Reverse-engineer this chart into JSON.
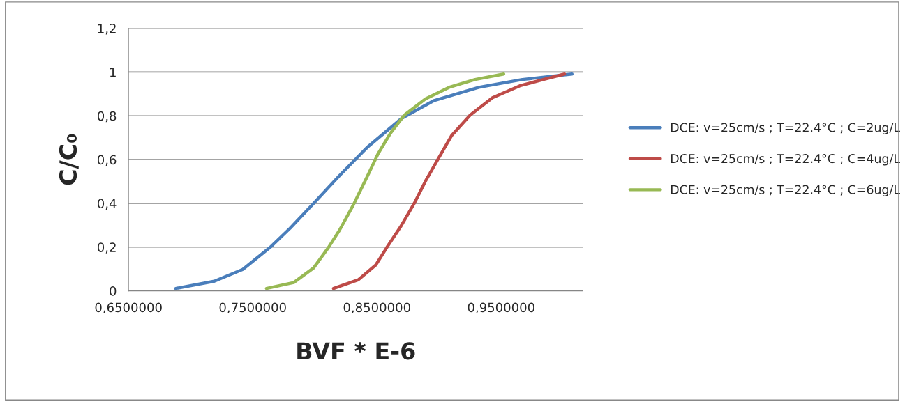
{
  "chart_data": {
    "type": "line",
    "xlabel": "BVF * E-6",
    "ylabel": "C/C₀",
    "xlim": [
      0.65,
      1.0157
    ],
    "xticks": [
      {
        "value": 0.65,
        "label": "0,6500000"
      },
      {
        "value": 0.75,
        "label": "0,7500000"
      },
      {
        "value": 0.85,
        "label": "0,8500000"
      },
      {
        "value": 0.95,
        "label": "0,9500000"
      }
    ],
    "ylim": [
      0,
      1.2
    ],
    "yticks": [
      0,
      {
        "value": 0.2,
        "label": "0,2"
      },
      {
        "value": 0.4,
        "label": "0,4"
      },
      {
        "value": 0.6,
        "label": "0,6"
      },
      {
        "value": 0.8,
        "label": "0,8"
      },
      1,
      {
        "value": 1.2,
        "label": "1,2"
      }
    ],
    "grid": "y",
    "legend": "right",
    "marker": "none",
    "line_style": "solid",
    "series": [
      {
        "name": "DCE: v=25cm/s ; T=22.4°C ; C=2ug/L",
        "color": "#4a7ebb",
        "x": [
          0.688,
          0.719,
          0.742,
          0.764,
          0.78,
          0.799,
          0.82,
          0.842,
          0.87,
          0.896,
          0.932,
          0.967,
          1.007
        ],
        "values": [
          0.011,
          0.044,
          0.098,
          0.199,
          0.286,
          0.4,
          0.528,
          0.655,
          0.789,
          0.87,
          0.93,
          0.966,
          0.991
        ]
      },
      {
        "name": "DCE: v=25cm/s ; T=22.4°C ; C=4ug/L",
        "color": "#be4b48",
        "x": [
          0.815,
          0.835,
          0.849,
          0.858,
          0.869,
          0.88,
          0.889,
          0.899,
          0.91,
          0.925,
          0.943,
          0.965,
          0.984,
          1.001
        ],
        "values": [
          0.011,
          0.051,
          0.118,
          0.199,
          0.293,
          0.4,
          0.501,
          0.601,
          0.709,
          0.803,
          0.883,
          0.937,
          0.966,
          0.991
        ]
      },
      {
        "name": "DCE: v=25cm/s ; T=22.4°C ; C=6ug/L",
        "color": "#98b954",
        "x": [
          0.761,
          0.783,
          0.799,
          0.811,
          0.82,
          0.831,
          0.842,
          0.851,
          0.861,
          0.872,
          0.889,
          0.908,
          0.929,
          0.952
        ],
        "values": [
          0.011,
          0.038,
          0.105,
          0.199,
          0.279,
          0.393,
          0.521,
          0.628,
          0.722,
          0.803,
          0.877,
          0.93,
          0.966,
          0.991
        ]
      }
    ]
  }
}
